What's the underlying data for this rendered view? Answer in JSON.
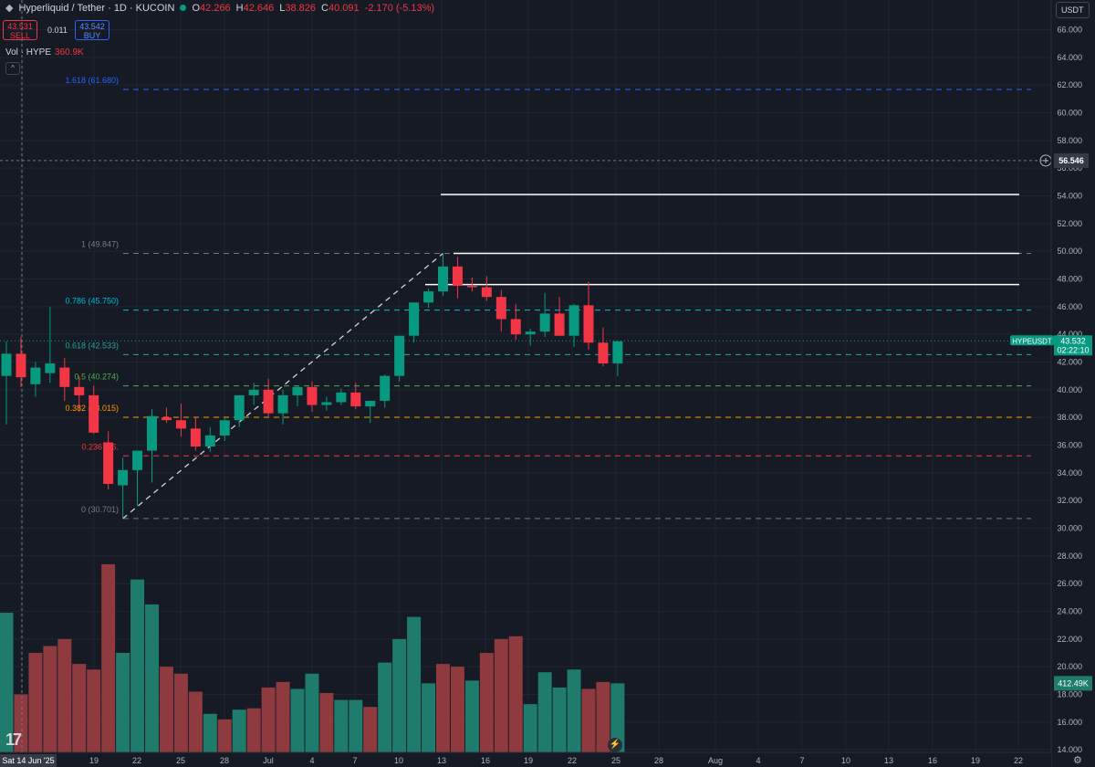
{
  "header": {
    "symbol": "Hyperliquid / Tether · 1D · KUCOIN",
    "open_label": "O",
    "open": "42.266",
    "high_label": "H",
    "high": "42.646",
    "low_label": "L",
    "low": "38.826",
    "close_label": "C",
    "close": "40.091",
    "change": "-2.170 (-5.13%)"
  },
  "trade": {
    "sell_price": "43.531",
    "sell_label": "SELL",
    "spread": "0.011",
    "buy_price": "43.542",
    "buy_label": "BUY"
  },
  "volume_legend": {
    "label": "Vol · HYPE",
    "value": "360.9K"
  },
  "currency": "USDT",
  "collapse_glyph": "^",
  "logo_text": "17",
  "settings_icon": "gear-icon",
  "crosshair": {
    "price": "56.546",
    "date_label": "Sat 14 Jun '25"
  },
  "last_price": {
    "symbol": "HYPEUSDT",
    "price": "43.532",
    "countdown": "02:22:10"
  },
  "volume_last_label": "412.49K",
  "colors": {
    "up": "#089981",
    "down": "#f23645",
    "up_vol": "#1f7c6c",
    "down_vol": "#8e3a3e",
    "background": "#161a25"
  },
  "chart_data": {
    "type": "candlestick",
    "title": "Hyperliquid / Tether · 1D · KUCOIN",
    "y_ticks": [
      "66.000",
      "64.000",
      "62.000",
      "60.000",
      "58.000",
      "56.000",
      "54.000",
      "52.000",
      "50.000",
      "48.000",
      "46.000",
      "44.000",
      "42.000",
      "40.000",
      "38.000",
      "36.000",
      "34.000",
      "32.000",
      "30.000",
      "28.000",
      "26.000",
      "24.000",
      "22.000",
      "20.000",
      "18.000",
      "16.000",
      "14.000"
    ],
    "ylim": [
      13.4,
      67
    ],
    "x_ticks": [
      "Sat 14 Jun '25",
      "19",
      "22",
      "25",
      "28",
      "Jul",
      "4",
      "7",
      "10",
      "13",
      "16",
      "19",
      "22",
      "25",
      "28",
      "Aug",
      "4",
      "7",
      "10",
      "13",
      "16",
      "19",
      "22"
    ],
    "candles": [
      {
        "o": 41.0,
        "h": 43.5,
        "l": 37.5,
        "c": 42.6
      },
      {
        "o": 42.6,
        "h": 43.8,
        "l": 40.2,
        "c": 40.9
      },
      {
        "o": 40.4,
        "h": 42.0,
        "l": 39.5,
        "c": 41.6
      },
      {
        "o": 41.2,
        "h": 46.0,
        "l": 40.5,
        "c": 41.9
      },
      {
        "o": 41.6,
        "h": 42.3,
        "l": 39.2,
        "c": 40.2
      },
      {
        "o": 40.2,
        "h": 41.0,
        "l": 38.4,
        "c": 39.6
      },
      {
        "o": 39.6,
        "h": 40.3,
        "l": 36.8,
        "c": 36.9
      },
      {
        "o": 36.2,
        "h": 37.0,
        "l": 32.8,
        "c": 33.2
      },
      {
        "o": 33.1,
        "h": 35.1,
        "l": 30.7,
        "c": 34.2
      },
      {
        "o": 34.2,
        "h": 35.5,
        "l": 31.6,
        "c": 35.6
      },
      {
        "o": 35.6,
        "h": 38.6,
        "l": 33.3,
        "c": 38.1
      },
      {
        "o": 38.0,
        "h": 38.7,
        "l": 37.6,
        "c": 37.8
      },
      {
        "o": 37.8,
        "h": 39.0,
        "l": 36.6,
        "c": 37.2
      },
      {
        "o": 37.2,
        "h": 38.0,
        "l": 35.6,
        "c": 35.9
      },
      {
        "o": 35.9,
        "h": 37.3,
        "l": 35.5,
        "c": 36.7
      },
      {
        "o": 36.7,
        "h": 38.0,
        "l": 36.3,
        "c": 37.8
      },
      {
        "o": 37.8,
        "h": 39.6,
        "l": 37.3,
        "c": 39.6
      },
      {
        "o": 39.6,
        "h": 40.5,
        "l": 38.9,
        "c": 40.0
      },
      {
        "o": 40.0,
        "h": 40.8,
        "l": 38.0,
        "c": 38.3
      },
      {
        "o": 38.3,
        "h": 40.0,
        "l": 37.5,
        "c": 39.6
      },
      {
        "o": 39.6,
        "h": 40.3,
        "l": 38.8,
        "c": 40.2
      },
      {
        "o": 40.2,
        "h": 40.6,
        "l": 38.4,
        "c": 38.9
      },
      {
        "o": 38.9,
        "h": 39.5,
        "l": 38.5,
        "c": 39.1
      },
      {
        "o": 39.1,
        "h": 40.1,
        "l": 38.9,
        "c": 39.8
      },
      {
        "o": 39.8,
        "h": 40.5,
        "l": 38.6,
        "c": 38.8
      },
      {
        "o": 38.8,
        "h": 39.2,
        "l": 37.6,
        "c": 39.2
      },
      {
        "o": 39.2,
        "h": 41.1,
        "l": 38.7,
        "c": 41.0
      },
      {
        "o": 41.0,
        "h": 43.9,
        "l": 40.6,
        "c": 43.9
      },
      {
        "o": 43.9,
        "h": 46.3,
        "l": 43.4,
        "c": 46.3
      },
      {
        "o": 46.3,
        "h": 47.3,
        "l": 45.9,
        "c": 47.1
      },
      {
        "o": 47.1,
        "h": 49.8,
        "l": 46.8,
        "c": 48.9
      },
      {
        "o": 48.9,
        "h": 49.6,
        "l": 46.6,
        "c": 47.5
      },
      {
        "o": 47.5,
        "h": 48.1,
        "l": 47.1,
        "c": 47.4
      },
      {
        "o": 47.4,
        "h": 48.2,
        "l": 46.4,
        "c": 46.7
      },
      {
        "o": 46.7,
        "h": 47.2,
        "l": 44.2,
        "c": 45.1
      },
      {
        "o": 45.1,
        "h": 46.2,
        "l": 43.6,
        "c": 44.0
      },
      {
        "o": 44.0,
        "h": 44.4,
        "l": 43.2,
        "c": 44.2
      },
      {
        "o": 44.2,
        "h": 47.0,
        "l": 43.8,
        "c": 45.5
      },
      {
        "o": 45.5,
        "h": 46.7,
        "l": 43.9,
        "c": 43.9
      },
      {
        "o": 43.9,
        "h": 46.2,
        "l": 43.1,
        "c": 46.1
      },
      {
        "o": 46.1,
        "h": 47.8,
        "l": 42.9,
        "c": 43.4
      },
      {
        "o": 43.4,
        "h": 44.5,
        "l": 41.7,
        "c": 41.9
      },
      {
        "o": 41.9,
        "h": 43.5,
        "l": 41.0,
        "c": 43.5
      }
    ],
    "volume_series": [
      {
        "v": 23.9,
        "dir": "up"
      },
      {
        "v": 18.0,
        "dir": "down"
      },
      {
        "v": 21.0,
        "dir": "down"
      },
      {
        "v": 21.5,
        "dir": "down"
      },
      {
        "v": 22.0,
        "dir": "down"
      },
      {
        "v": 20.2,
        "dir": "down"
      },
      {
        "v": 19.8,
        "dir": "down"
      },
      {
        "v": 27.4,
        "dir": "down"
      },
      {
        "v": 21.0,
        "dir": "up"
      },
      {
        "v": 26.3,
        "dir": "up"
      },
      {
        "v": 24.5,
        "dir": "up"
      },
      {
        "v": 20.0,
        "dir": "down"
      },
      {
        "v": 19.5,
        "dir": "down"
      },
      {
        "v": 18.2,
        "dir": "down"
      },
      {
        "v": 16.6,
        "dir": "up"
      },
      {
        "v": 16.2,
        "dir": "down"
      },
      {
        "v": 16.9,
        "dir": "up"
      },
      {
        "v": 17.0,
        "dir": "down"
      },
      {
        "v": 18.5,
        "dir": "down"
      },
      {
        "v": 18.9,
        "dir": "down"
      },
      {
        "v": 18.4,
        "dir": "up"
      },
      {
        "v": 19.5,
        "dir": "up"
      },
      {
        "v": 18.1,
        "dir": "down"
      },
      {
        "v": 17.6,
        "dir": "up"
      },
      {
        "v": 17.6,
        "dir": "up"
      },
      {
        "v": 17.1,
        "dir": "down"
      },
      {
        "v": 20.3,
        "dir": "up"
      },
      {
        "v": 22.0,
        "dir": "up"
      },
      {
        "v": 23.6,
        "dir": "up"
      },
      {
        "v": 18.8,
        "dir": "up"
      },
      {
        "v": 20.2,
        "dir": "down"
      },
      {
        "v": 20.0,
        "dir": "down"
      },
      {
        "v": 19.0,
        "dir": "up"
      },
      {
        "v": 21.0,
        "dir": "down"
      },
      {
        "v": 22.0,
        "dir": "down"
      },
      {
        "v": 22.2,
        "dir": "down"
      },
      {
        "v": 17.3,
        "dir": "up"
      },
      {
        "v": 19.6,
        "dir": "up"
      },
      {
        "v": 18.5,
        "dir": "up"
      },
      {
        "v": 19.8,
        "dir": "up"
      },
      {
        "v": 18.4,
        "dir": "down"
      },
      {
        "v": 18.9,
        "dir": "down"
      },
      {
        "v": 18.8,
        "dir": "up"
      }
    ],
    "fib_levels": [
      {
        "label": "1.618 (61.680)",
        "value": 61.68,
        "color": "#2962ff"
      },
      {
        "label": "1 (49.847)",
        "value": 49.847,
        "color": "#787b86"
      },
      {
        "label": "0.786 (45.750)",
        "value": 45.75,
        "color": "#00bcd4"
      },
      {
        "label": "0.618 (42.533)",
        "value": 42.533,
        "color": "#26a69a"
      },
      {
        "label": "0.5 (40.274)",
        "value": 40.274,
        "color": "#4caf50"
      },
      {
        "label": "0.382 (38.015)",
        "value": 38.015,
        "color": "#ff9800"
      },
      {
        "label": "0.236 (35.",
        "value": 35.223,
        "color": "#f23645"
      },
      {
        "label": "0 (30.701)",
        "value": 30.701,
        "color": "#787b86"
      }
    ],
    "horizontal_lines": [
      54.1,
      49.85,
      47.6
    ],
    "trend_line": {
      "from": {
        "candle": 8,
        "price": 30.7
      },
      "to": {
        "candle": 30,
        "price": 49.85
      }
    }
  }
}
